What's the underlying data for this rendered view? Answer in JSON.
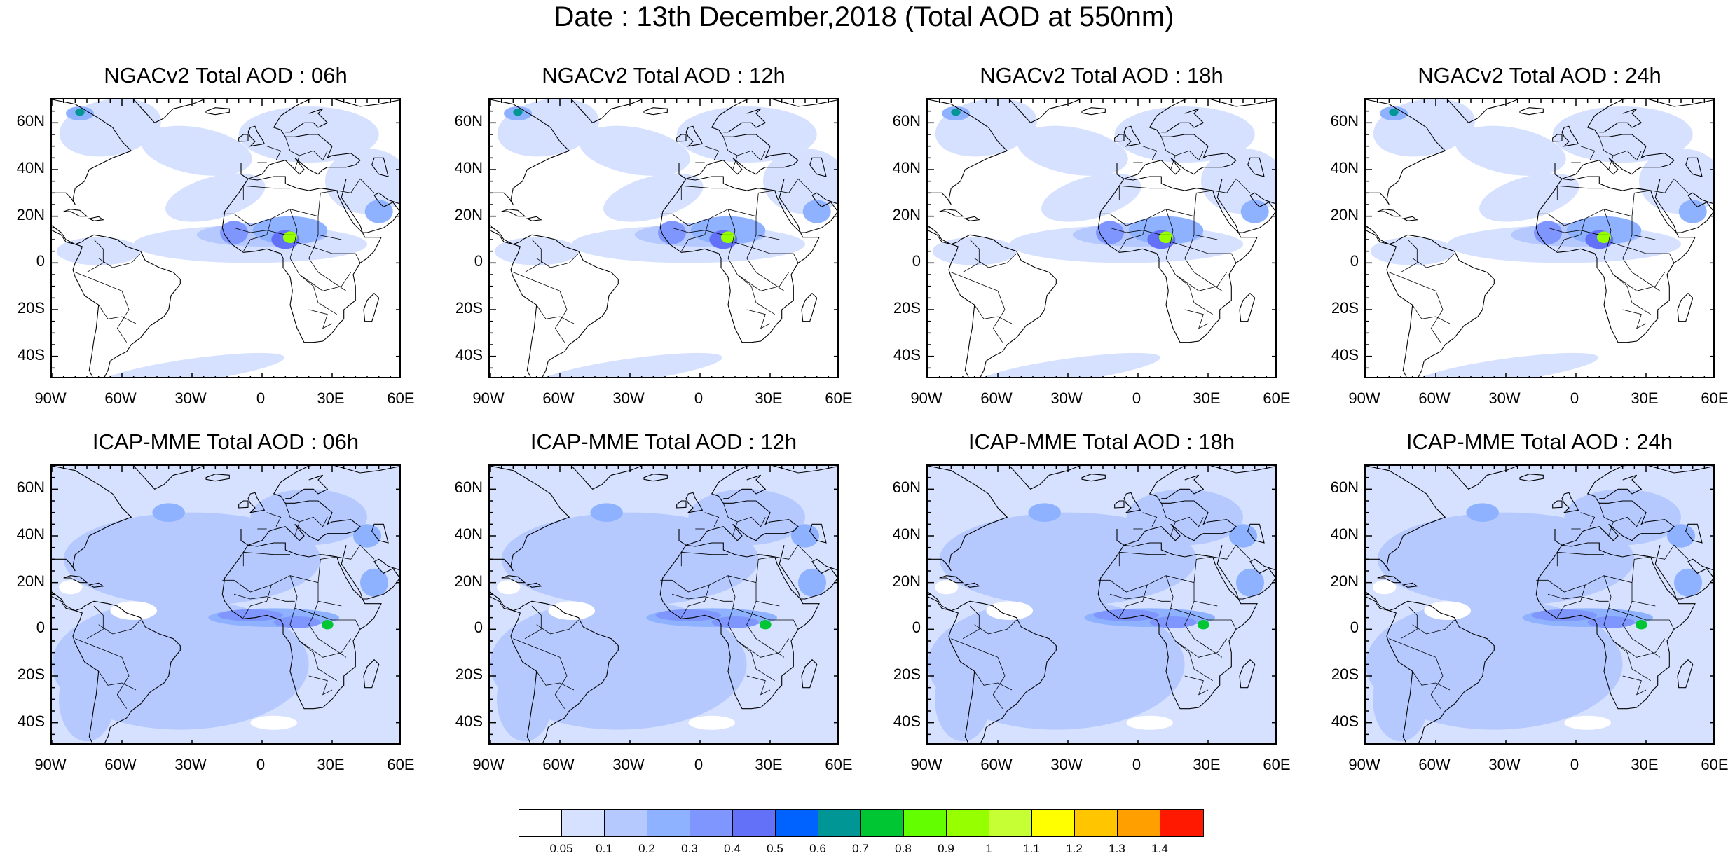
{
  "title": "Date : 13th December,2018 (Total AOD at 550nm)",
  "panels": [
    {
      "title": "NGACv2 Total AOD : 06h",
      "model": "NGACv2",
      "lead": "06h"
    },
    {
      "title": "NGACv2 Total AOD : 12h",
      "model": "NGACv2",
      "lead": "12h"
    },
    {
      "title": "NGACv2 Total AOD : 18h",
      "model": "NGACv2",
      "lead": "18h"
    },
    {
      "title": "NGACv2 Total AOD : 24h",
      "model": "NGACv2",
      "lead": "24h"
    },
    {
      "title": "ICAP-MME Total AOD : 06h",
      "model": "ICAP-MME",
      "lead": "06h"
    },
    {
      "title": "ICAP-MME Total AOD : 12h",
      "model": "ICAP-MME",
      "lead": "12h"
    },
    {
      "title": "ICAP-MME Total AOD : 18h",
      "model": "ICAP-MME",
      "lead": "18h"
    },
    {
      "title": "ICAP-MME Total AOD : 24h",
      "model": "ICAP-MME",
      "lead": "24h"
    }
  ],
  "lat_labels": [
    "60N",
    "40N",
    "20N",
    "0",
    "20S",
    "40S"
  ],
  "lat_values": [
    60,
    40,
    20,
    0,
    -20,
    -40
  ],
  "lon_labels": [
    "90W",
    "60W",
    "30W",
    "0",
    "30E",
    "60E"
  ],
  "lon_values": [
    -90,
    -60,
    -30,
    0,
    30,
    60
  ],
  "map_extent": {
    "lon": [
      -90,
      60
    ],
    "lat": [
      -50,
      70
    ]
  },
  "colorbar": {
    "labels": [
      "0.05",
      "0.1",
      "0.2",
      "0.3",
      "0.4",
      "0.5",
      "0.6",
      "0.7",
      "0.8",
      "0.9",
      "1",
      "1.1",
      "1.2",
      "1.3",
      "1.4"
    ],
    "colors": [
      "#ffffff",
      "#d6e1ff",
      "#b5c9ff",
      "#8eb2ff",
      "#7f96ff",
      "#6370f8",
      "#0063ff",
      "#009696",
      "#00c633",
      "#63ff00",
      "#96ff00",
      "#c6ff33",
      "#ffff00",
      "#ffc600",
      "#ffa000",
      "#ff7c00",
      "#ff1900"
    ]
  }
}
